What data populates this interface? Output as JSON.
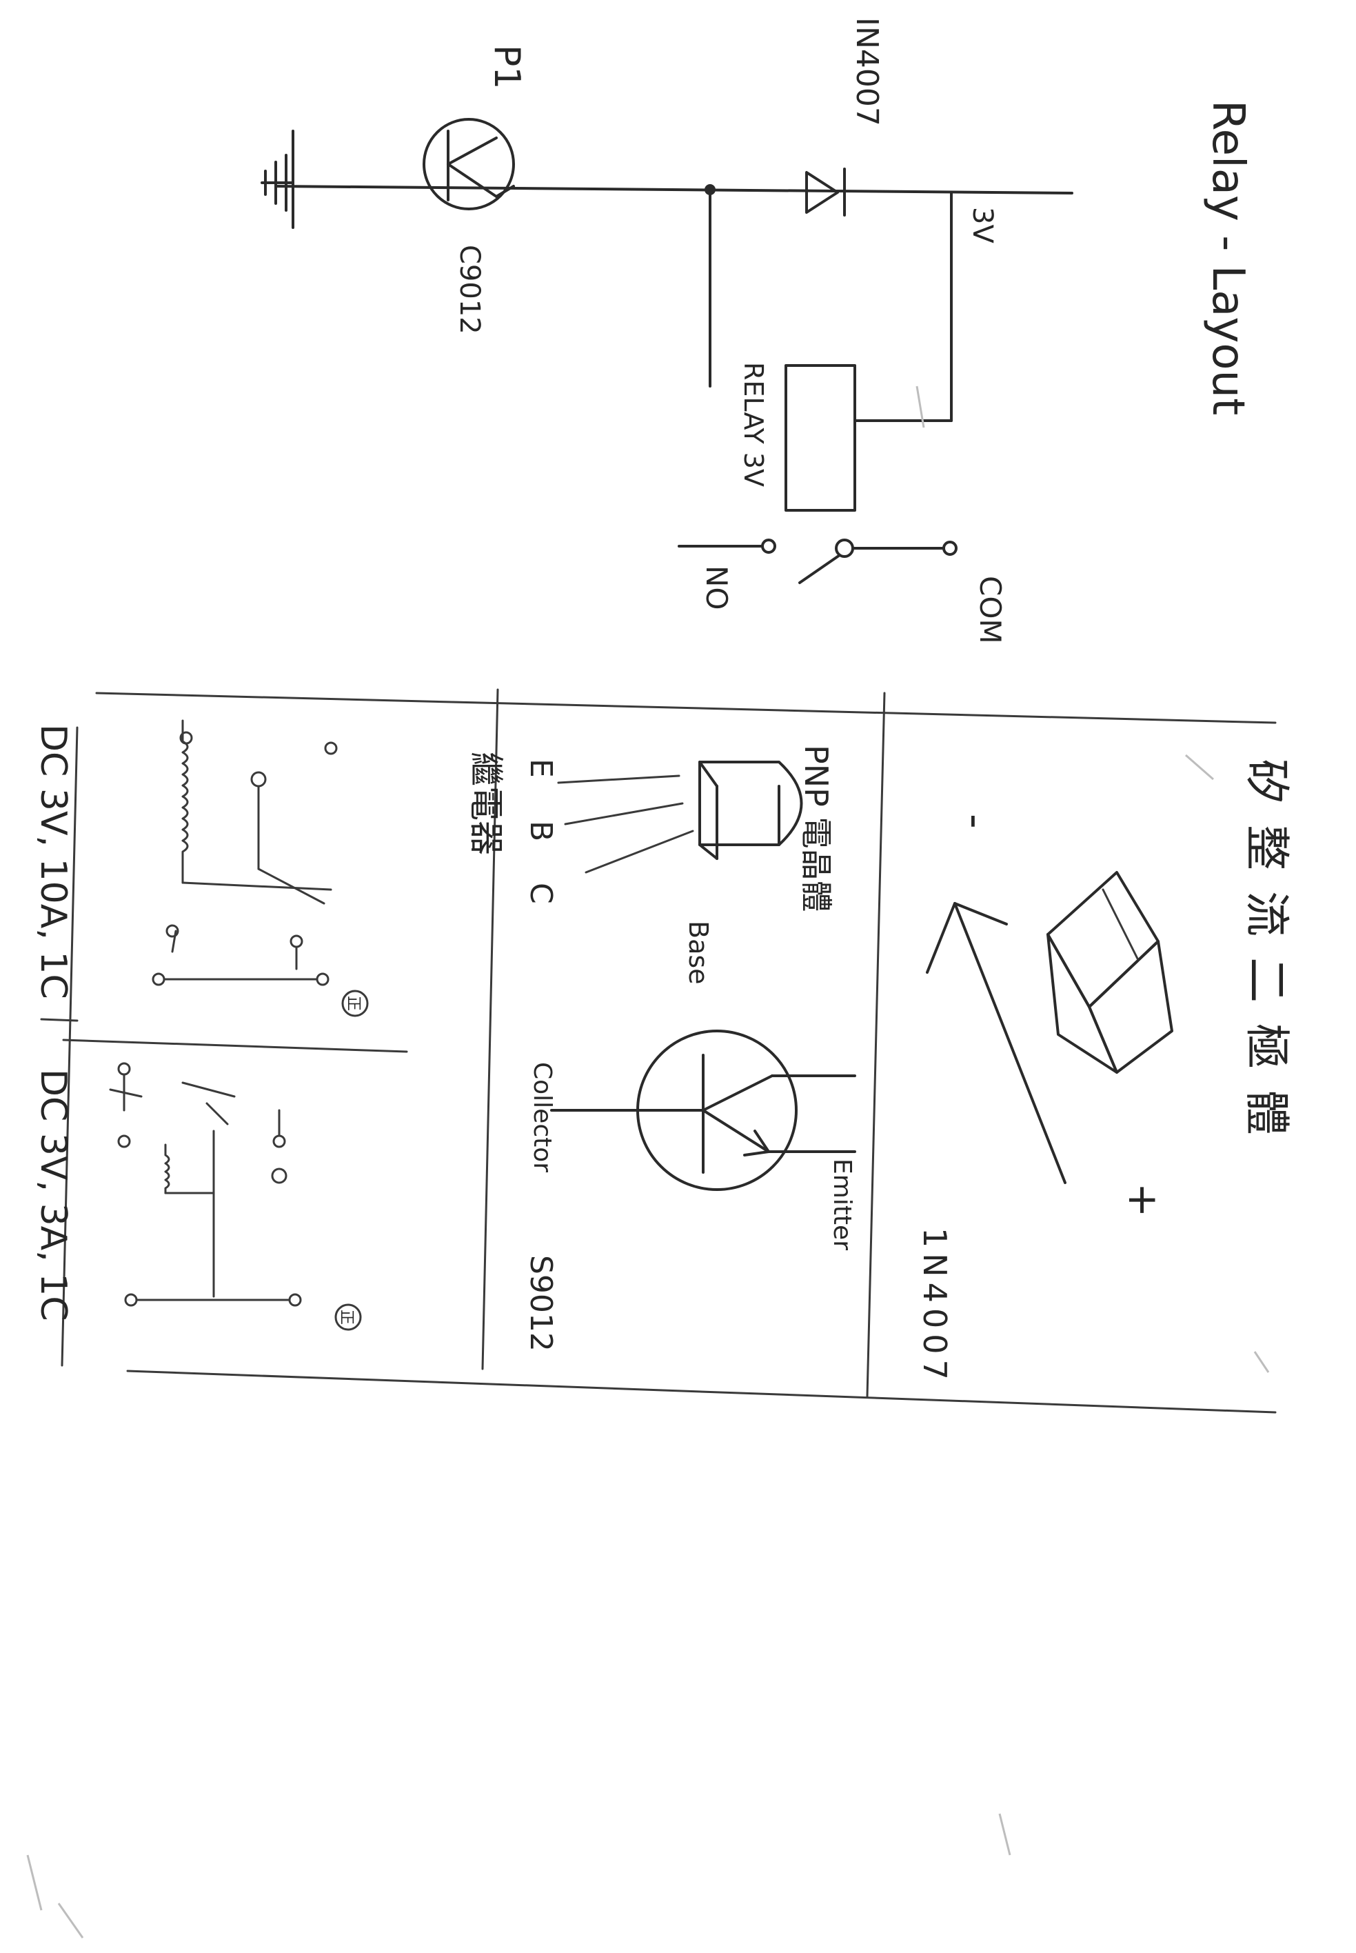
{
  "title": "Relay - Layout",
  "circuit": {
    "diode_label": "IN4007",
    "supply_label": "3V",
    "relay_label": "RELAY 3V",
    "com_label": "COM",
    "no_label": "NO",
    "pin_label": "P1",
    "transistor_label": "C9012"
  },
  "components": {
    "diode_title": "矽整流二極體",
    "diode_part": "1N4007",
    "pnp_title": "PNP 電晶體",
    "pin_e": "E",
    "pin_b": "B",
    "pin_c": "C",
    "base_label": "Base",
    "collector_label": "Collector",
    "emitter_label": "Emitter",
    "transistor_part": "S9012",
    "relay_title": "繼電器",
    "relay1_spec": "DC 3V, 10A, 1C",
    "relay2_spec": "DC 3V, 3A, 1C",
    "plus_sign": "+",
    "minus_sign": "-",
    "top_mark": "正"
  }
}
